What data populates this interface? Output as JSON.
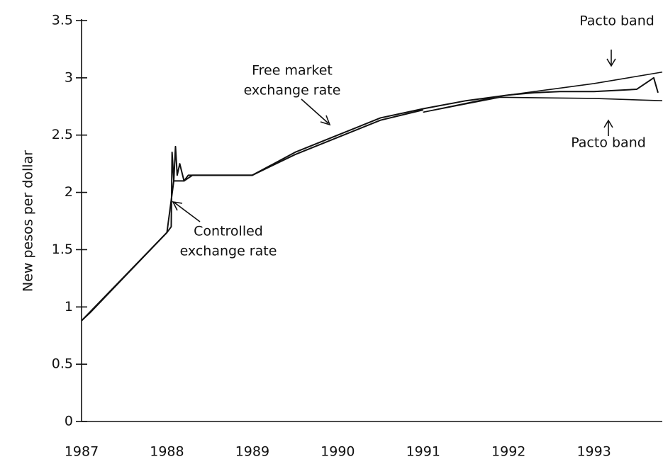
{
  "chart_data": {
    "type": "line",
    "y_label": "New pesos per dollar",
    "xlim": [
      1987,
      1993.8
    ],
    "xticks": [
      1987,
      1988,
      1989,
      1990,
      1991,
      1992,
      1993
    ],
    "ylim": [
      0,
      3.5
    ],
    "yticks": [
      0,
      0.5,
      1,
      1.5,
      2,
      2.5,
      3,
      3.5
    ],
    "series": [
      {
        "color": "#111111",
        "x": [
          1987.0,
          1987.1,
          1988.0,
          1988.05,
          1988.06,
          1988.08,
          1988.1,
          1988.12,
          1988.15,
          1988.2,
          1988.25,
          1988.4,
          1989.0,
          1989.5,
          1990.0,
          1990.5,
          1991.0,
          1991.5,
          1992.0,
          1992.3,
          1992.6,
          1993.0,
          1993.5,
          1993.7,
          1993.75
        ],
        "values": [
          0.88,
          0.95,
          1.65,
          1.7,
          2.35,
          2.1,
          2.4,
          2.15,
          2.25,
          2.1,
          2.15,
          2.15,
          2.15,
          2.35,
          2.5,
          2.65,
          2.73,
          2.8,
          2.85,
          2.87,
          2.88,
          2.88,
          2.9,
          3.0,
          2.87
        ]
      },
      {
        "color": "#111111",
        "x": [
          1987.0,
          1988.0,
          1988.08,
          1988.2,
          1988.3,
          1989.0,
          1989.5,
          1990.0,
          1990.5,
          1991.0
        ],
        "values": [
          0.88,
          1.65,
          2.1,
          2.1,
          2.15,
          2.15,
          2.33,
          2.48,
          2.63,
          2.72
        ]
      },
      {
        "color": "#111111",
        "x": [
          1991.0,
          1991.9,
          1992.5,
          1993.0,
          1993.8
        ],
        "values": [
          2.7,
          2.84,
          2.9,
          2.95,
          3.05
        ]
      },
      {
        "color": "#111111",
        "x": [
          1991.0,
          1991.9,
          1993.0,
          1993.8
        ],
        "values": [
          2.7,
          2.83,
          2.82,
          2.8
        ]
      }
    ],
    "annotations": [
      {
        "lines": [
          "Free market",
          "exchange rate"
        ]
      },
      {
        "lines": [
          "Controlled",
          "exchange rate"
        ]
      },
      {
        "lines": [
          "Pacto band"
        ]
      },
      {
        "lines": [
          "Pacto band"
        ]
      }
    ]
  }
}
